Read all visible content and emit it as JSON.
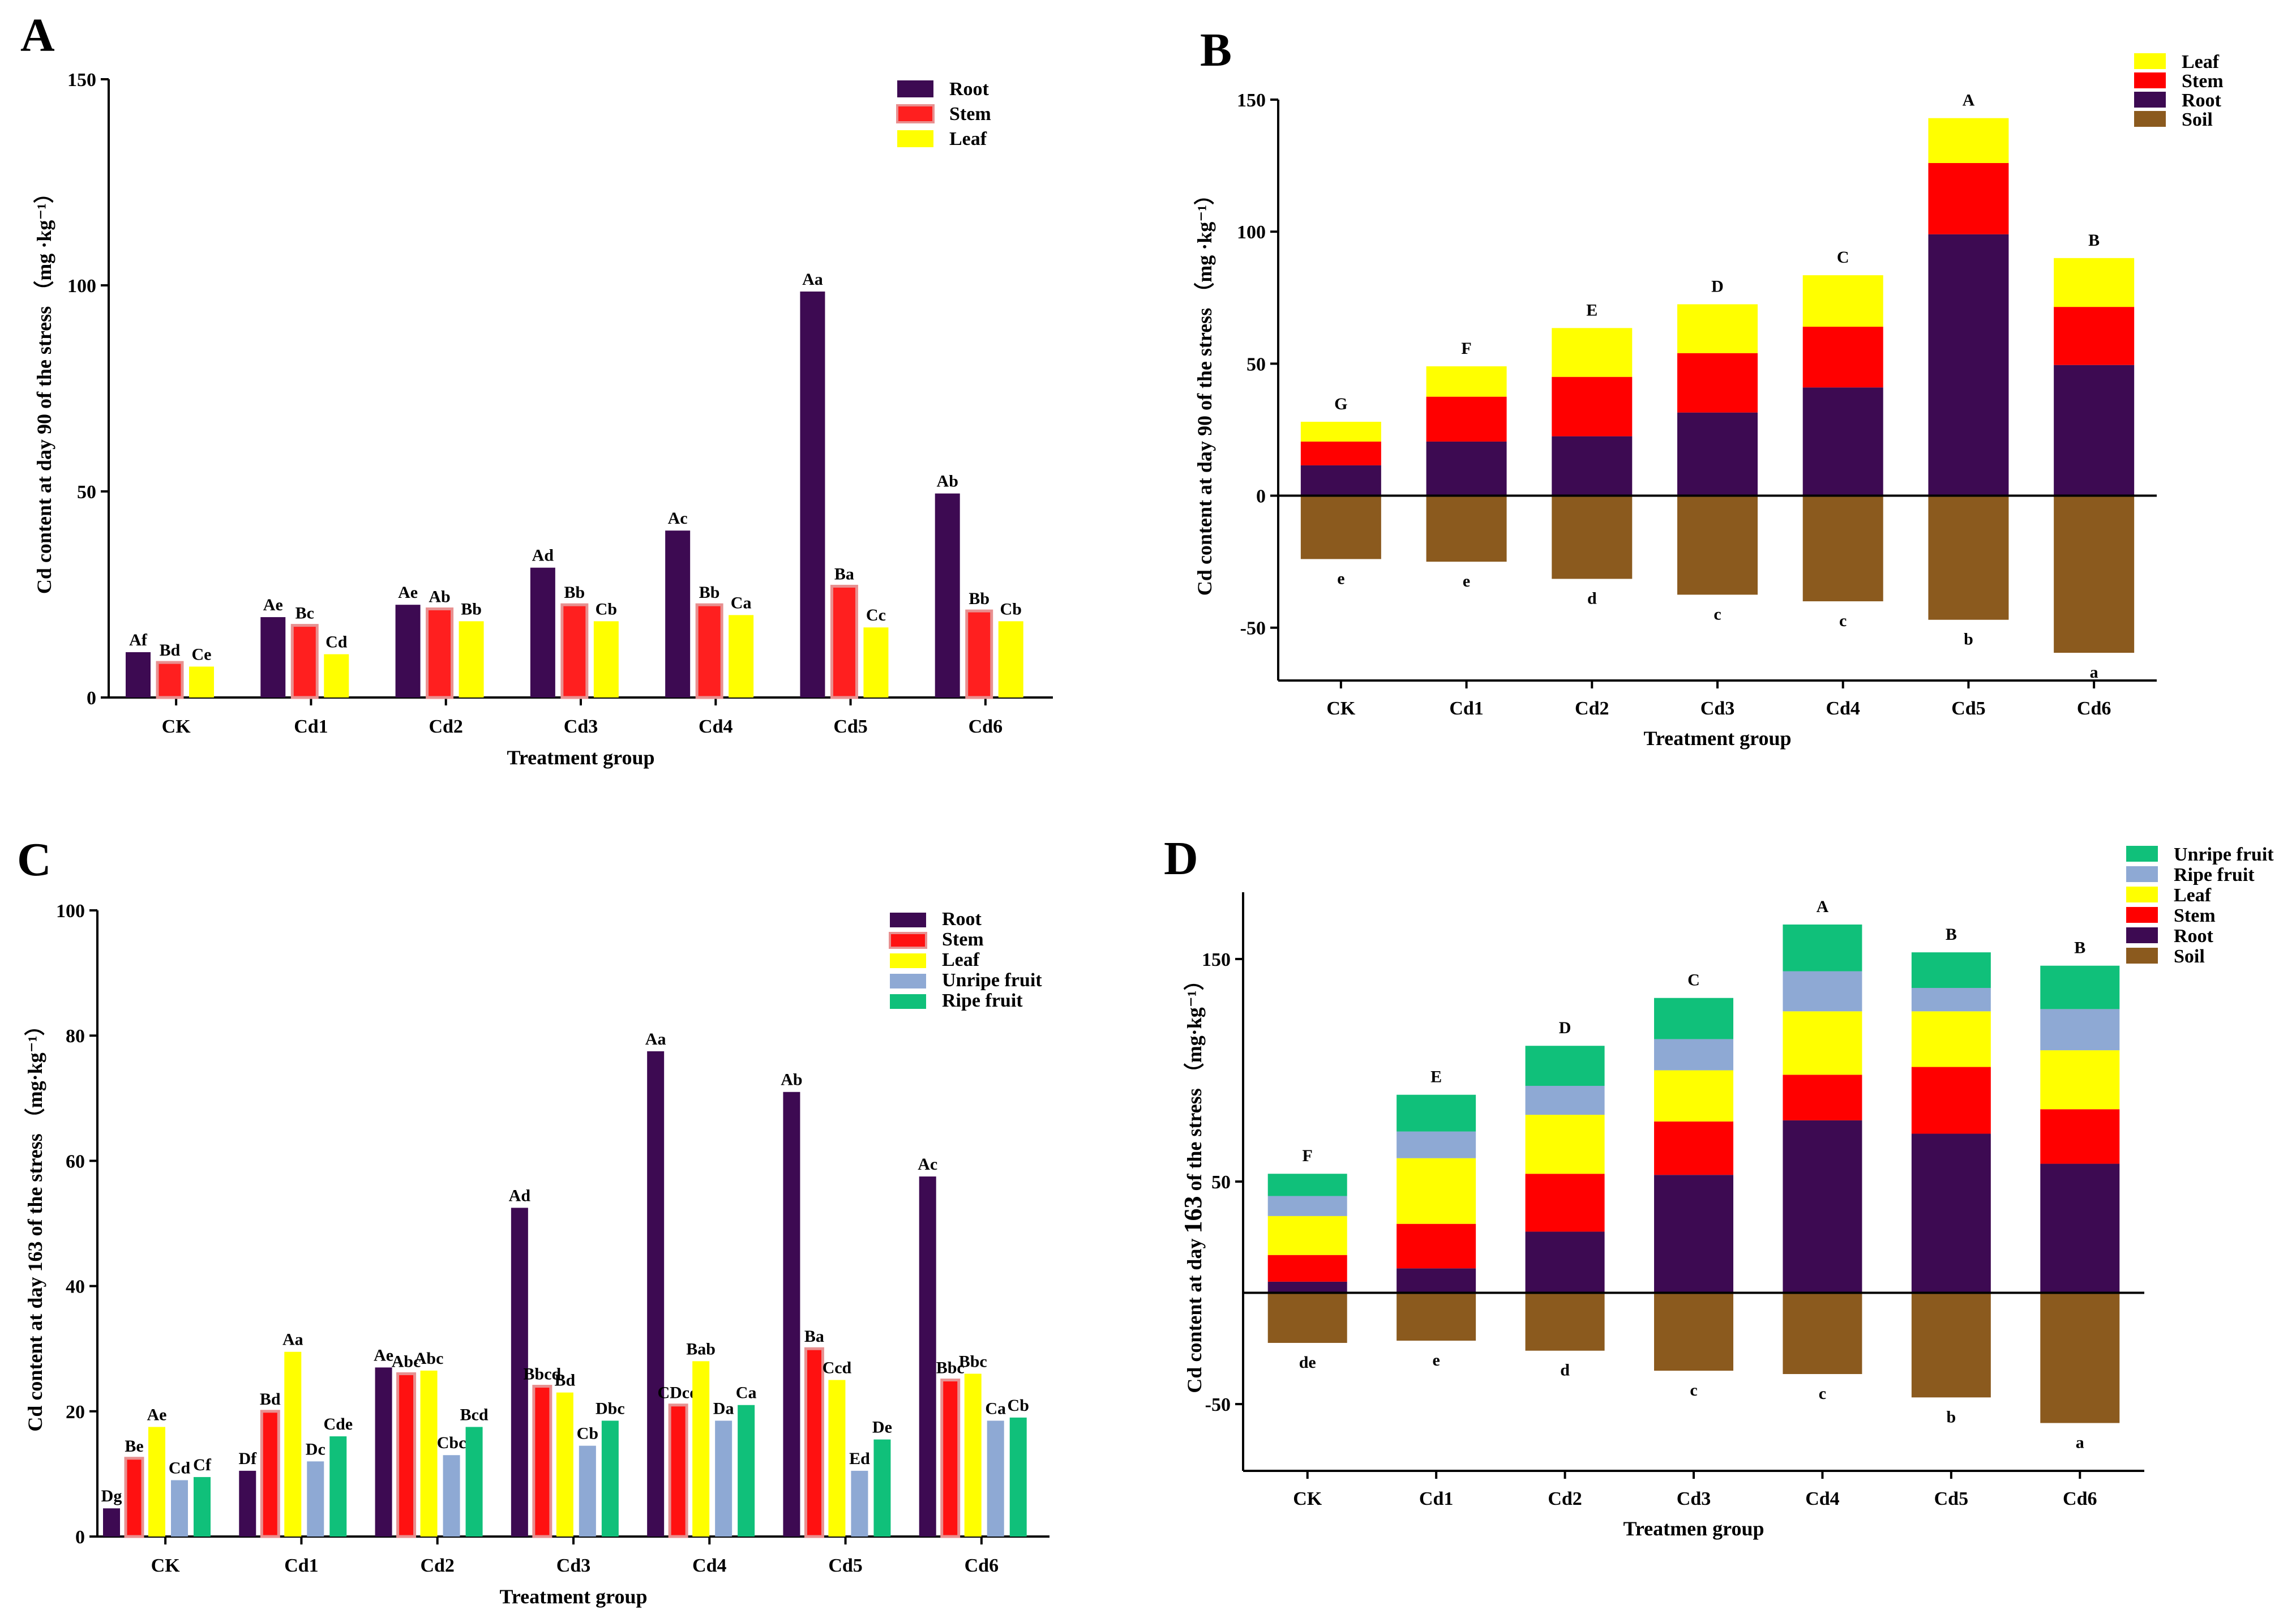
{
  "chart_data": [
    {
      "panel": "A",
      "type": "bar",
      "categories": [
        "CK",
        "Cd1",
        "Cd2",
        "Cd3",
        "Cd4",
        "Cd5",
        "Cd6"
      ],
      "series": [
        {
          "name": "Root",
          "color": "#3d0a52",
          "values": [
            11,
            19.5,
            22.5,
            31.5,
            40.5,
            98.5,
            49.5
          ],
          "labels": [
            "Af",
            "Ae",
            "Ae",
            "Ad",
            "Ac",
            "Aa",
            "Ab"
          ]
        },
        {
          "name": "Stem",
          "color": "#ff1f1f",
          "values": [
            8.5,
            17.5,
            21.5,
            22.5,
            22.5,
            27,
            21
          ],
          "labels": [
            "Bd",
            "Bc",
            "Ab",
            "Bb",
            "Bb",
            "Ba",
            "Bb"
          ]
        },
        {
          "name": "Leaf",
          "color": "#ffff00",
          "values": [
            7.5,
            10.5,
            18.5,
            18.5,
            20,
            17,
            18.5
          ],
          "labels": [
            "Ce",
            "Cd",
            "Bb",
            "Cb",
            "Ca",
            "Cc",
            "Cb"
          ]
        }
      ],
      "ylim": [
        0,
        150
      ],
      "yticks": [
        0,
        50,
        100,
        150
      ],
      "xlabel": "Treatment group",
      "ylabel": "Cd content at day 90 of the stress （mg ·kg⁻¹）",
      "legend": "top-right"
    },
    {
      "panel": "B",
      "type": "stacked-bar",
      "categories": [
        "CK",
        "Cd1",
        "Cd2",
        "Cd3",
        "Cd4",
        "Cd5",
        "Cd6"
      ],
      "series": [
        {
          "name": "Soil",
          "color": "#8b5a1e",
          "values": [
            -24,
            -25,
            -31.5,
            -37.5,
            -40,
            -47,
            -59.5
          ]
        },
        {
          "name": "Root",
          "color": "#3d0a52",
          "values": [
            11.5,
            20.5,
            22.5,
            31.5,
            41,
            99,
            49.5
          ]
        },
        {
          "name": "Stem",
          "color": "#ff0000",
          "values": [
            9,
            17,
            22.5,
            22.5,
            23,
            27,
            22
          ]
        },
        {
          "name": "Leaf",
          "color": "#ffff00",
          "values": [
            7.5,
            11.5,
            18.5,
            18.5,
            19.5,
            17,
            18.5
          ]
        }
      ],
      "legend_order": [
        "Leaf",
        "Stem",
        "Root",
        "Soil"
      ],
      "top_labels": [
        "G",
        "F",
        "E",
        "D",
        "C",
        "A",
        "B"
      ],
      "bottom_labels": [
        "e",
        "e",
        "d",
        "c",
        "c",
        "b",
        "a"
      ],
      "ylim": [
        -70,
        150
      ],
      "yticks": [
        -50,
        0,
        50,
        100,
        150
      ],
      "xlabel": "Treatment group",
      "ylabel": "Cd content at day 90 of the stress （mg ·kg⁻¹）",
      "legend": "top-right"
    },
    {
      "panel": "C",
      "type": "bar",
      "categories": [
        "CK",
        "Cd1",
        "Cd2",
        "Cd3",
        "Cd4",
        "Cd5",
        "Cd6"
      ],
      "series": [
        {
          "name": "Root",
          "color": "#3d0a52",
          "values": [
            4.5,
            10.5,
            27,
            52.5,
            77.5,
            71,
            57.5
          ],
          "labels": [
            "Dg",
            "Df",
            "Ae",
            "Ad",
            "Aa",
            "Ab",
            "Ac"
          ]
        },
        {
          "name": "Stem",
          "color": "#ff1111",
          "values": [
            12.5,
            20,
            26,
            24,
            21,
            30,
            25
          ],
          "labels": [
            "Be",
            "Bd",
            "Abc",
            "Bbcd",
            "CDcd",
            "Ba",
            "Bbc"
          ]
        },
        {
          "name": "Leaf",
          "color": "#ffff00",
          "values": [
            17.5,
            29.5,
            26.5,
            23,
            28,
            25,
            26
          ],
          "labels": [
            "Ae",
            "Aa",
            "Abc",
            "Bd",
            "Bab",
            "Ccd",
            "Bbc"
          ]
        },
        {
          "name": "Unripe fruit",
          "color": "#8ea9d4",
          "values": [
            9,
            12,
            13,
            14.5,
            18.5,
            10.5,
            18.5
          ],
          "labels": [
            "Cd",
            "Dc",
            "Cbc",
            "Cb",
            "Da",
            "Ed",
            "Ca"
          ]
        },
        {
          "name": "Ripe fruit",
          "color": "#10c07a",
          "values": [
            9.5,
            16,
            17.5,
            18.5,
            21,
            15.5,
            19
          ],
          "labels": [
            "Cf",
            "Cde",
            "Bcd",
            "Dbc",
            "Ca",
            "De",
            "Cb"
          ]
        }
      ],
      "ylim": [
        0,
        100
      ],
      "yticks": [
        0,
        20,
        40,
        60,
        80,
        100
      ],
      "xlabel": "Treatment group",
      "ylabel": "Cd content at day 163 of the stress （mg·kg⁻¹）",
      "legend": "top-right"
    },
    {
      "panel": "D",
      "type": "stacked-bar",
      "categories": [
        "CK",
        "Cd1",
        "Cd2",
        "Cd3",
        "Cd4",
        "Cd5",
        "Cd6"
      ],
      "series": [
        {
          "name": "Soil",
          "color": "#8b5a1e",
          "values": [
            -22.5,
            -21.5,
            -26,
            -35,
            -36.5,
            -47,
            -58.5
          ]
        },
        {
          "name": "Root",
          "color": "#3d0a52",
          "values": [
            5,
            11,
            27.5,
            53,
            77.5,
            71.5,
            58
          ]
        },
        {
          "name": "Stem",
          "color": "#ff0000",
          "values": [
            12,
            20,
            26,
            24,
            20.5,
            30,
            24.5
          ]
        },
        {
          "name": "Leaf",
          "color": "#ffff00",
          "values": [
            17.5,
            29.5,
            26.5,
            23,
            28.5,
            25,
            26.5
          ]
        },
        {
          "name": "Ripe fruit",
          "color": "#8ea9d4",
          "values": [
            9,
            12,
            13,
            14,
            18,
            10.5,
            18.5
          ]
        },
        {
          "name": "Unripe fruit",
          "color": "#10c07a",
          "values": [
            10,
            16.5,
            18,
            18.5,
            21,
            16,
            19.5
          ]
        }
      ],
      "legend_order": [
        "Unripe fruit",
        "Ripe fruit",
        "Leaf",
        "Stem",
        "Root",
        "Soil"
      ],
      "top_labels": [
        "F",
        "E",
        "D",
        "C",
        "A",
        "B",
        "B"
      ],
      "bottom_labels": [
        "de",
        "e",
        "d",
        "c",
        "c",
        "b",
        "a"
      ],
      "ylim": [
        -80,
        180
      ],
      "yticks": [
        -50,
        50,
        150
      ],
      "xlabel": "Treatmen group",
      "ylabel_prefix": "Cd content at day ",
      "ylabel_day": "163",
      "ylabel_suffix": " of the stress （mg·kg⁻¹）",
      "legend": "top-right"
    }
  ]
}
